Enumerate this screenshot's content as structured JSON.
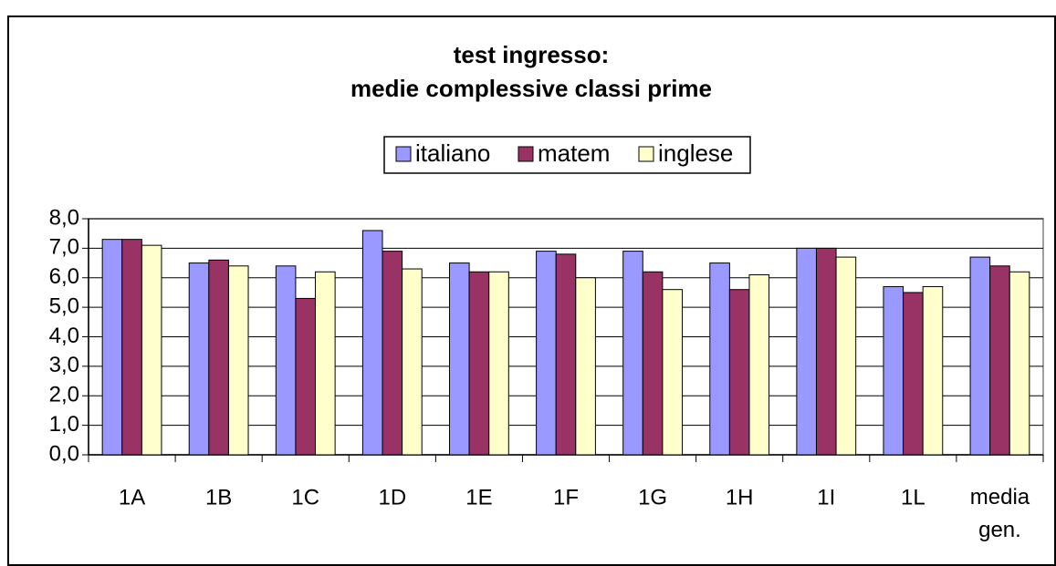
{
  "chart_data": {
    "type": "bar",
    "title": [
      "test ingresso:",
      "medie complessive classi prime"
    ],
    "categories": [
      "1A",
      "1B",
      "1C",
      "1D",
      "1E",
      "1F",
      "1G",
      "1H",
      "1I",
      "1L",
      "media gen."
    ],
    "series": [
      {
        "name": "italiano",
        "color": "#9999ff",
        "values": [
          7.3,
          6.5,
          6.4,
          7.6,
          6.5,
          6.9,
          6.9,
          6.5,
          7.0,
          5.7,
          6.7
        ]
      },
      {
        "name": "matem",
        "color": "#993366",
        "values": [
          7.3,
          6.6,
          5.3,
          6.9,
          6.2,
          6.8,
          6.2,
          5.6,
          7.0,
          5.5,
          6.4
        ]
      },
      {
        "name": "inglese",
        "color": "#ffffcc",
        "values": [
          7.1,
          6.4,
          6.2,
          6.3,
          6.2,
          6.0,
          5.6,
          6.1,
          6.7,
          5.7,
          6.2
        ]
      }
    ],
    "ylim": [
      0,
      8
    ],
    "yticks": [
      {
        "value": 0,
        "label": "0,0"
      },
      {
        "value": 1,
        "label": "1,0"
      },
      {
        "value": 2,
        "label": "2,0"
      },
      {
        "value": 3,
        "label": "3,0"
      },
      {
        "value": 4,
        "label": "4,0"
      },
      {
        "value": 5,
        "label": "5,0"
      },
      {
        "value": 6,
        "label": "6,0"
      },
      {
        "value": 7,
        "label": "7,0"
      },
      {
        "value": 8,
        "label": "8,0"
      }
    ],
    "grid": true,
    "legend": "top"
  }
}
